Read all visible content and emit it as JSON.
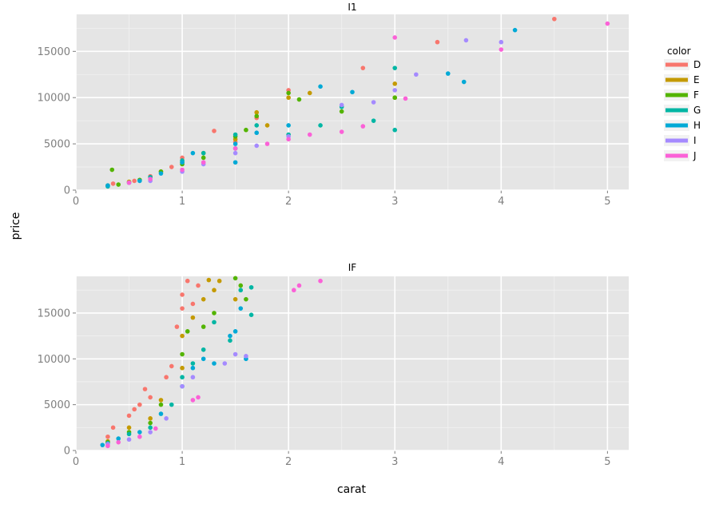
{
  "chart_data": {
    "type": "scatter",
    "xlabel": "carat",
    "ylabel": "price",
    "xlim": [
      0,
      5.2
    ],
    "ylim": [
      0,
      19000
    ],
    "x_ticks": [
      0,
      1,
      2,
      3,
      4,
      5
    ],
    "y_ticks": [
      0,
      5000,
      10000,
      15000
    ],
    "grid": true,
    "legend": {
      "title": "color",
      "placement": "right",
      "entries": [
        {
          "name": "D",
          "color": "#F8766D"
        },
        {
          "name": "E",
          "color": "#C49A00"
        },
        {
          "name": "F",
          "color": "#53B400"
        },
        {
          "name": "G",
          "color": "#00B6A4"
        },
        {
          "name": "H",
          "color": "#00A9D6"
        },
        {
          "name": "I",
          "color": "#A58AFF"
        },
        {
          "name": "J",
          "color": "#FB61D7"
        }
      ]
    },
    "facets": [
      {
        "title": "I1",
        "series": [
          {
            "name": "D",
            "points": [
              [
                0.35,
                700
              ],
              [
                0.55,
                1000
              ],
              [
                0.7,
                1500
              ],
              [
                0.9,
                2500
              ],
              [
                1.0,
                3500
              ],
              [
                1.3,
                6400
              ],
              [
                1.5,
                5200
              ],
              [
                1.7,
                7800
              ],
              [
                2.0,
                10800
              ],
              [
                2.7,
                13200
              ],
              [
                3.4,
                16000
              ],
              [
                4.5,
                18500
              ]
            ]
          },
          {
            "name": "E",
            "points": [
              [
                0.3,
                500
              ],
              [
                0.5,
                900
              ],
              [
                0.8,
                2000
              ],
              [
                1.0,
                3000
              ],
              [
                1.2,
                4000
              ],
              [
                1.5,
                5500
              ],
              [
                1.7,
                8400
              ],
              [
                1.8,
                7000
              ],
              [
                2.2,
                10500
              ],
              [
                3.0,
                11500
              ],
              [
                3.0,
                10000
              ],
              [
                2.0,
                10000
              ]
            ]
          },
          {
            "name": "F",
            "points": [
              [
                0.34,
                2200
              ],
              [
                0.4,
                600
              ],
              [
                0.6,
                1100
              ],
              [
                0.8,
                2000
              ],
              [
                1.0,
                2800
              ],
              [
                1.2,
                3500
              ],
              [
                1.5,
                5800
              ],
              [
                1.6,
                6500
              ],
              [
                1.7,
                8000
              ],
              [
                2.0,
                10500
              ],
              [
                2.1,
                9800
              ],
              [
                2.5,
                8500
              ],
              [
                3.0,
                10000
              ]
            ]
          },
          {
            "name": "G",
            "points": [
              [
                0.3,
                400
              ],
              [
                0.5,
                800
              ],
              [
                0.7,
                1400
              ],
              [
                1.0,
                3200
              ],
              [
                1.2,
                4000
              ],
              [
                1.5,
                4500
              ],
              [
                1.5,
                6000
              ],
              [
                1.7,
                7000
              ],
              [
                2.0,
                6000
              ],
              [
                2.3,
                7000
              ],
              [
                2.5,
                9000
              ],
              [
                3.0,
                13200
              ],
              [
                3.0,
                6500
              ],
              [
                2.8,
                7500
              ]
            ]
          },
          {
            "name": "H",
            "points": [
              [
                0.3,
                500
              ],
              [
                0.6,
                1000
              ],
              [
                0.8,
                1800
              ],
              [
                1.0,
                3000
              ],
              [
                1.1,
                4000
              ],
              [
                1.5,
                3000
              ],
              [
                1.5,
                5000
              ],
              [
                1.7,
                6200
              ],
              [
                2.0,
                7000
              ],
              [
                2.3,
                11200
              ],
              [
                2.6,
                10600
              ],
              [
                3.5,
                12600
              ],
              [
                3.65,
                11700
              ],
              [
                4.13,
                17300
              ]
            ]
          },
          {
            "name": "I",
            "points": [
              [
                0.7,
                1000
              ],
              [
                1.0,
                2000
              ],
              [
                1.2,
                2800
              ],
              [
                1.5,
                4000
              ],
              [
                1.7,
                4800
              ],
              [
                2.0,
                5800
              ],
              [
                2.5,
                9200
              ],
              [
                2.8,
                9500
              ],
              [
                3.0,
                10800
              ],
              [
                3.2,
                12500
              ],
              [
                3.67,
                16200
              ],
              [
                4.0,
                16000
              ]
            ]
          },
          {
            "name": "J",
            "points": [
              [
                0.5,
                800
              ],
              [
                0.7,
                1200
              ],
              [
                1.0,
                2200
              ],
              [
                1.2,
                3000
              ],
              [
                1.5,
                4500
              ],
              [
                1.8,
                5000
              ],
              [
                2.0,
                5500
              ],
              [
                2.2,
                6000
              ],
              [
                2.5,
                6300
              ],
              [
                2.7,
                6900
              ],
              [
                3.0,
                16500
              ],
              [
                3.1,
                9900
              ],
              [
                4.0,
                15200
              ],
              [
                5.0,
                18000
              ]
            ]
          }
        ]
      },
      {
        "title": "IF",
        "series": [
          {
            "name": "D",
            "points": [
              [
                0.3,
                1500
              ],
              [
                0.35,
                2500
              ],
              [
                0.5,
                3800
              ],
              [
                0.55,
                4500
              ],
              [
                0.6,
                5000
              ],
              [
                0.65,
                6700
              ],
              [
                0.7,
                5800
              ],
              [
                0.85,
                8000
              ],
              [
                0.9,
                9200
              ],
              [
                0.95,
                13500
              ],
              [
                1.0,
                15500
              ],
              [
                1.0,
                17000
              ],
              [
                1.05,
                18500
              ],
              [
                1.1,
                16000
              ],
              [
                1.15,
                18000
              ]
            ]
          },
          {
            "name": "E",
            "points": [
              [
                0.3,
                1000
              ],
              [
                0.5,
                2500
              ],
              [
                0.7,
                3500
              ],
              [
                0.8,
                5500
              ],
              [
                1.0,
                9000
              ],
              [
                1.0,
                12500
              ],
              [
                1.1,
                14500
              ],
              [
                1.2,
                16500
              ],
              [
                1.25,
                18600
              ],
              [
                1.3,
                17500
              ],
              [
                1.35,
                18500
              ],
              [
                1.5,
                16500
              ]
            ]
          },
          {
            "name": "F",
            "points": [
              [
                0.3,
                900
              ],
              [
                0.5,
                2000
              ],
              [
                0.7,
                3000
              ],
              [
                0.8,
                5000
              ],
              [
                1.0,
                10500
              ],
              [
                1.05,
                13000
              ],
              [
                1.2,
                13500
              ],
              [
                1.3,
                15000
              ],
              [
                1.5,
                18800
              ],
              [
                1.55,
                18000
              ],
              [
                1.6,
                16500
              ]
            ]
          },
          {
            "name": "G",
            "points": [
              [
                0.3,
                800
              ],
              [
                0.5,
                1800
              ],
              [
                0.7,
                2500
              ],
              [
                0.9,
                5000
              ],
              [
                1.0,
                8000
              ],
              [
                1.1,
                9500
              ],
              [
                1.2,
                11000
              ],
              [
                1.3,
                14000
              ],
              [
                1.45,
                12000
              ],
              [
                1.55,
                17500
              ],
              [
                1.65,
                17800
              ],
              [
                1.65,
                14800
              ]
            ]
          },
          {
            "name": "H",
            "points": [
              [
                0.25,
                600
              ],
              [
                0.4,
                1300
              ],
              [
                0.6,
                2000
              ],
              [
                0.8,
                4000
              ],
              [
                1.0,
                7000
              ],
              [
                1.1,
                9000
              ],
              [
                1.2,
                10000
              ],
              [
                1.3,
                9500
              ],
              [
                1.45,
                12500
              ],
              [
                1.5,
                13000
              ],
              [
                1.55,
                15500
              ],
              [
                1.6,
                10000
              ]
            ]
          },
          {
            "name": "I",
            "points": [
              [
                0.3,
                700
              ],
              [
                0.5,
                1200
              ],
              [
                0.7,
                2000
              ],
              [
                0.85,
                3500
              ],
              [
                1.0,
                7000
              ],
              [
                1.1,
                8000
              ],
              [
                1.4,
                9500
              ],
              [
                1.5,
                10500
              ],
              [
                1.6,
                10300
              ]
            ]
          },
          {
            "name": "J",
            "points": [
              [
                0.3,
                500
              ],
              [
                0.4,
                900
              ],
              [
                0.6,
                1500
              ],
              [
                0.75,
                2400
              ],
              [
                1.1,
                5500
              ],
              [
                1.15,
                5800
              ],
              [
                2.05,
                17500
              ],
              [
                2.1,
                18000
              ],
              [
                2.3,
                18500
              ]
            ]
          }
        ]
      }
    ]
  }
}
